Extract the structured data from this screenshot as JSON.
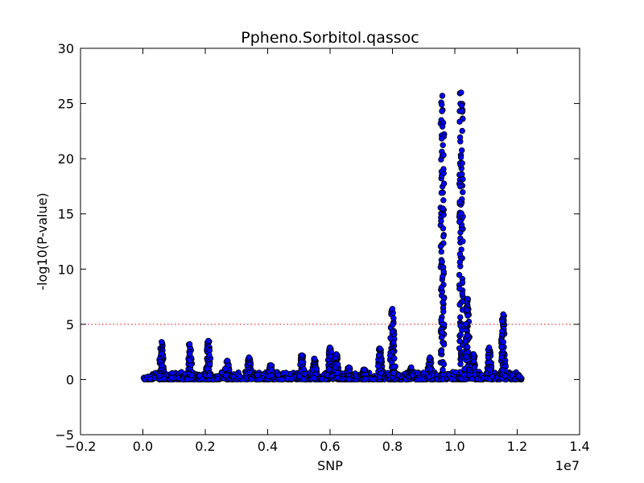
{
  "chart_data": {
    "type": "scatter",
    "title": "Ppheno.Sorbitol.qassoc",
    "xlabel": "SNP",
    "ylabel": "-log10(P-value)",
    "x_multiplier_label": "1e7",
    "xlim": [
      -2000000,
      14000000
    ],
    "ylim": [
      -5,
      30
    ],
    "x_ticks": [
      -2000000,
      0,
      2000000,
      4000000,
      6000000,
      8000000,
      10000000,
      12000000,
      14000000
    ],
    "x_tick_labels": [
      "−0.2",
      "0.0",
      "0.2",
      "0.4",
      "0.6",
      "0.8",
      "1.0",
      "1.2",
      "1.4"
    ],
    "y_ticks": [
      -5,
      0,
      5,
      10,
      15,
      20,
      25,
      30
    ],
    "y_tick_labels": [
      "−5",
      "0",
      "5",
      "10",
      "15",
      "20",
      "25",
      "30"
    ],
    "grid": false,
    "threshold": {
      "y": 5,
      "color": "#ff0000",
      "style": "dotted"
    },
    "marker": {
      "fill": "#0000ff",
      "stroke": "#000000"
    },
    "series": [
      {
        "peaks": [
          {
            "x": 600000,
            "y": 3.4
          },
          {
            "x": 1500000,
            "y": 3.2
          },
          {
            "x": 2100000,
            "y": 3.5
          },
          {
            "x": 2700000,
            "y": 1.7
          },
          {
            "x": 3400000,
            "y": 2.0
          },
          {
            "x": 4100000,
            "y": 1.3
          },
          {
            "x": 5100000,
            "y": 2.2
          },
          {
            "x": 5500000,
            "y": 1.9
          },
          {
            "x": 6000000,
            "y": 2.9
          },
          {
            "x": 6200000,
            "y": 2.3
          },
          {
            "x": 6600000,
            "y": 1.1
          },
          {
            "x": 7100000,
            "y": 0.9
          },
          {
            "x": 7600000,
            "y": 2.8
          },
          {
            "x": 8000000,
            "y": 6.4
          },
          {
            "x": 8600000,
            "y": 1.1
          },
          {
            "x": 9200000,
            "y": 2.0
          },
          {
            "x": 9600000,
            "y": 25.7
          },
          {
            "x": 10200000,
            "y": 26.0
          },
          {
            "x": 10400000,
            "y": 7.3
          },
          {
            "x": 10600000,
            "y": 2.3
          },
          {
            "x": 11100000,
            "y": 2.9
          },
          {
            "x": 11550000,
            "y": 5.9
          },
          {
            "x": 12050000,
            "y": 0.3
          }
        ],
        "x_range": [
          0,
          12100000
        ],
        "baseline_max": 0.7
      }
    ]
  }
}
